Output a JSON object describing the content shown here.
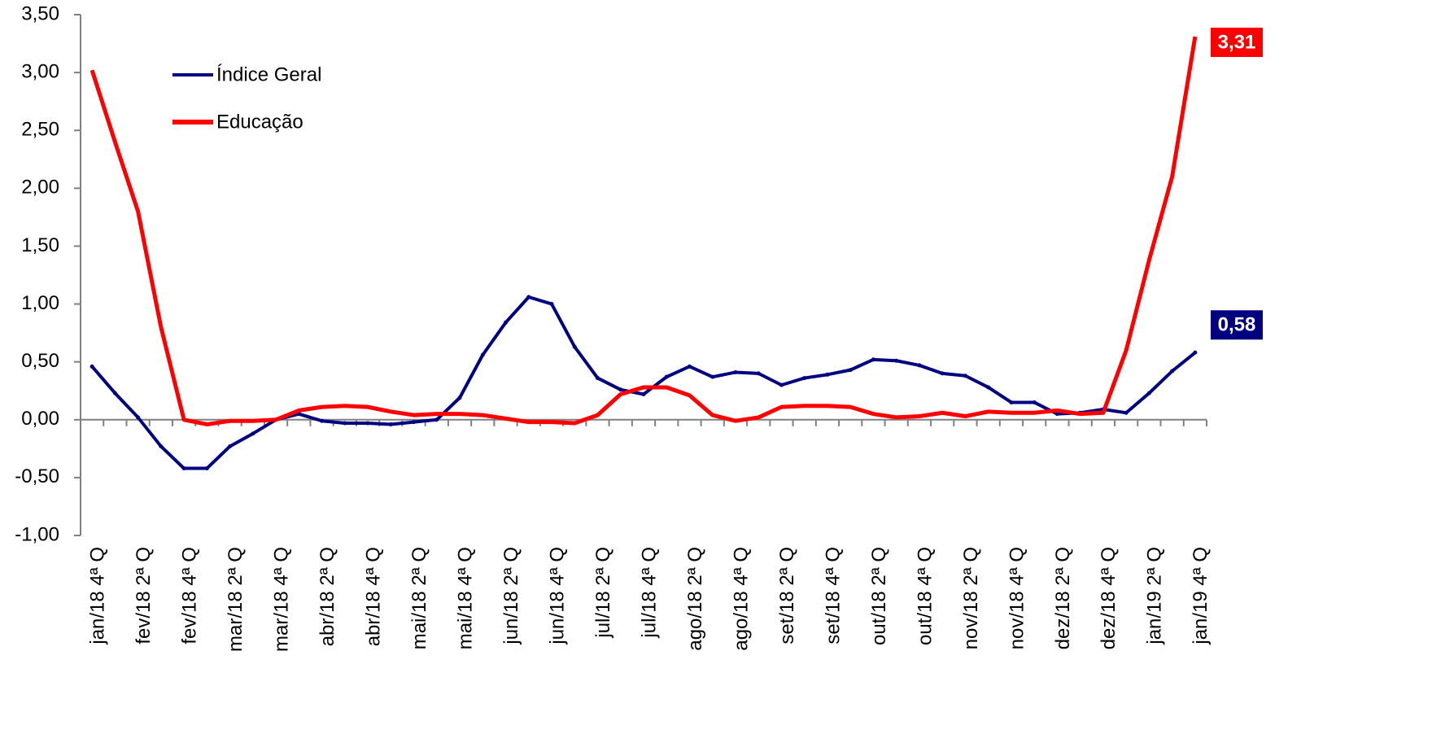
{
  "chart_data": {
    "type": "line",
    "categories": [
      "jan/18 4ª Q",
      null,
      "fev/18 2ª Q",
      null,
      "fev/18 4ª Q",
      null,
      "mar/18 2ª Q",
      null,
      "mar/18 4ª Q",
      null,
      "abr/18 2ª Q",
      null,
      "abr/18 4ª Q",
      null,
      "mai/18 2ª Q",
      null,
      "mai/18 4ª Q",
      null,
      "jun/18 2ª Q",
      null,
      "jun/18 4ª Q",
      null,
      "jul/18 2ª Q",
      null,
      "jul/18 4ª Q",
      null,
      "ago/18 2ª Q",
      null,
      "ago/18 4ª Q",
      null,
      "set/18 2ª Q",
      null,
      "set/18 4ª Q",
      null,
      "out/18 2ª Q",
      null,
      "out/18 4ª Q",
      null,
      "nov/18 2ª Q",
      null,
      "nov/18 4ª Q",
      null,
      "dez/18 2ª Q",
      null,
      "dez/18 4ª Q",
      null,
      "jan/19 2ª Q",
      null,
      "jan/19 4ª Q"
    ],
    "series": [
      {
        "name": "Índice Geral",
        "color": "#000080",
        "values": [
          0.46,
          0.23,
          0.02,
          -0.23,
          -0.42,
          -0.42,
          -0.23,
          -0.12,
          0.0,
          0.05,
          -0.01,
          -0.03,
          -0.03,
          -0.04,
          -0.02,
          0.0,
          0.19,
          0.56,
          0.84,
          1.06,
          1.0,
          0.63,
          0.36,
          0.26,
          0.22,
          0.37,
          0.46,
          0.37,
          0.41,
          0.4,
          0.3,
          0.36,
          0.39,
          0.43,
          0.52,
          0.51,
          0.47,
          0.4,
          0.38,
          0.28,
          0.15,
          0.15,
          0.05,
          0.06,
          0.09,
          0.06,
          0.23,
          0.42,
          0.58
        ],
        "value_labels": [
          null,
          null,
          null,
          null,
          null,
          null,
          null,
          null,
          null,
          null,
          null,
          null,
          null,
          null,
          null,
          null,
          null,
          null,
          null,
          null,
          null,
          null,
          null,
          null,
          null,
          null,
          null,
          null,
          null,
          null,
          null,
          null,
          null,
          null,
          null,
          null,
          null,
          null,
          null,
          null,
          null,
          null,
          null,
          null,
          null,
          null,
          null,
          null,
          "0,58"
        ]
      },
      {
        "name": "Educação",
        "color": "#ff0000",
        "values": [
          3.02,
          2.4,
          1.8,
          0.8,
          0.0,
          -0.04,
          -0.01,
          -0.01,
          0.0,
          0.08,
          0.11,
          0.12,
          0.11,
          0.07,
          0.04,
          0.05,
          0.05,
          0.04,
          0.01,
          -0.02,
          -0.02,
          -0.03,
          0.04,
          0.22,
          0.28,
          0.28,
          0.21,
          0.04,
          -0.01,
          0.02,
          0.11,
          0.12,
          0.12,
          0.11,
          0.05,
          0.02,
          0.03,
          0.06,
          0.03,
          0.07,
          0.06,
          0.06,
          0.08,
          0.05,
          0.06,
          0.6,
          1.38,
          2.1,
          3.31
        ],
        "value_labels": [
          null,
          null,
          null,
          null,
          null,
          null,
          null,
          null,
          null,
          null,
          null,
          null,
          null,
          null,
          null,
          null,
          null,
          null,
          null,
          null,
          null,
          null,
          null,
          null,
          null,
          null,
          null,
          null,
          null,
          null,
          null,
          null,
          null,
          null,
          null,
          null,
          null,
          null,
          null,
          null,
          null,
          null,
          null,
          null,
          null,
          null,
          null,
          null,
          "3,31"
        ]
      }
    ],
    "ylim": [
      -1,
      3.5
    ],
    "yticks": [
      {
        "value": -1,
        "label": "-1,00"
      },
      {
        "value": -0.5,
        "label": "-0,50"
      },
      {
        "value": 0,
        "label": "0,00"
      },
      {
        "value": 0.5,
        "label": "0,50"
      },
      {
        "value": 1,
        "label": "1,00"
      },
      {
        "value": 1.5,
        "label": "1,50"
      },
      {
        "value": 2,
        "label": "2,00"
      },
      {
        "value": 2.5,
        "label": "2,50"
      },
      {
        "value": 3,
        "label": "3,00"
      },
      {
        "value": 3.5,
        "label": "3,50"
      }
    ],
    "legend": "upper left"
  }
}
